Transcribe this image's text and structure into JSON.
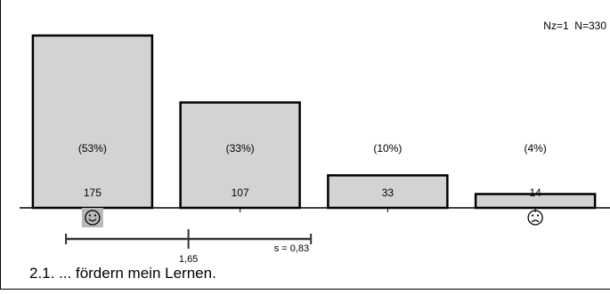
{
  "chart_data": {
    "type": "bar",
    "categories": [
      "1",
      "2",
      "3",
      "4"
    ],
    "values": [
      175,
      107,
      33,
      14
    ],
    "percent_labels": [
      "(53%)",
      "(33%)",
      "(10%)",
      "(4%)"
    ],
    "count_labels": [
      "175",
      "107",
      "33",
      "14"
    ],
    "ylim": [
      0,
      175
    ],
    "xlabel": "",
    "ylabel": "",
    "title": "2.1. ... fördern mein Lernen.",
    "counts_text": "Nz=1  N=330",
    "mean": 1.65,
    "mean_label": "1,65",
    "sd": 0.83,
    "sd_label": "s = 0,83",
    "scale_min": 1,
    "scale_max": 4,
    "left_anchor_icon": "smiley-happy-icon",
    "right_anchor_icon": "smiley-sad-icon",
    "bar_color": "#d3d3d3",
    "icon_highlight_color": "#b8b8b8"
  }
}
